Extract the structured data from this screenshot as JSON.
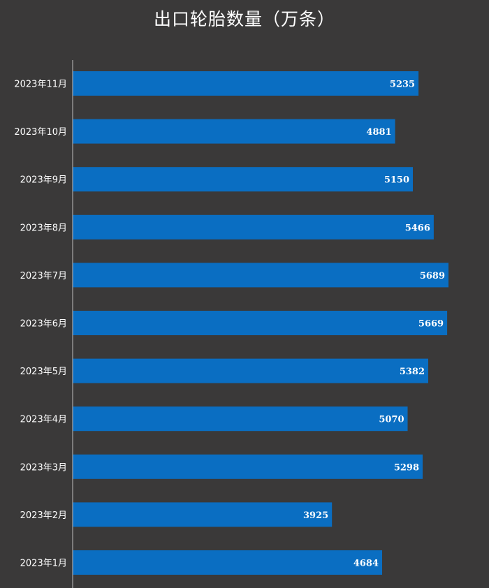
{
  "chart_data": {
    "type": "bar",
    "orientation": "horizontal",
    "title": "出口轮胎数量（万条）",
    "categories": [
      "2023年11月",
      "2023年10月",
      "2023年9月",
      "2023年8月",
      "2023年7月",
      "2023年6月",
      "2023年5月",
      "2023年4月",
      "2023年3月",
      "2023年2月",
      "2023年1月"
    ],
    "values": [
      5235,
      4881,
      5150,
      5466,
      5689,
      5669,
      5382,
      5070,
      5298,
      3925,
      4684
    ],
    "xlim": [
      0,
      5689
    ],
    "grid": false,
    "legend": "none",
    "data_labels": true
  },
  "colors": {
    "background": "#3a3939",
    "bar": "#0a6ec2",
    "axis": "#bdbdbd",
    "text": "#ffffff"
  }
}
